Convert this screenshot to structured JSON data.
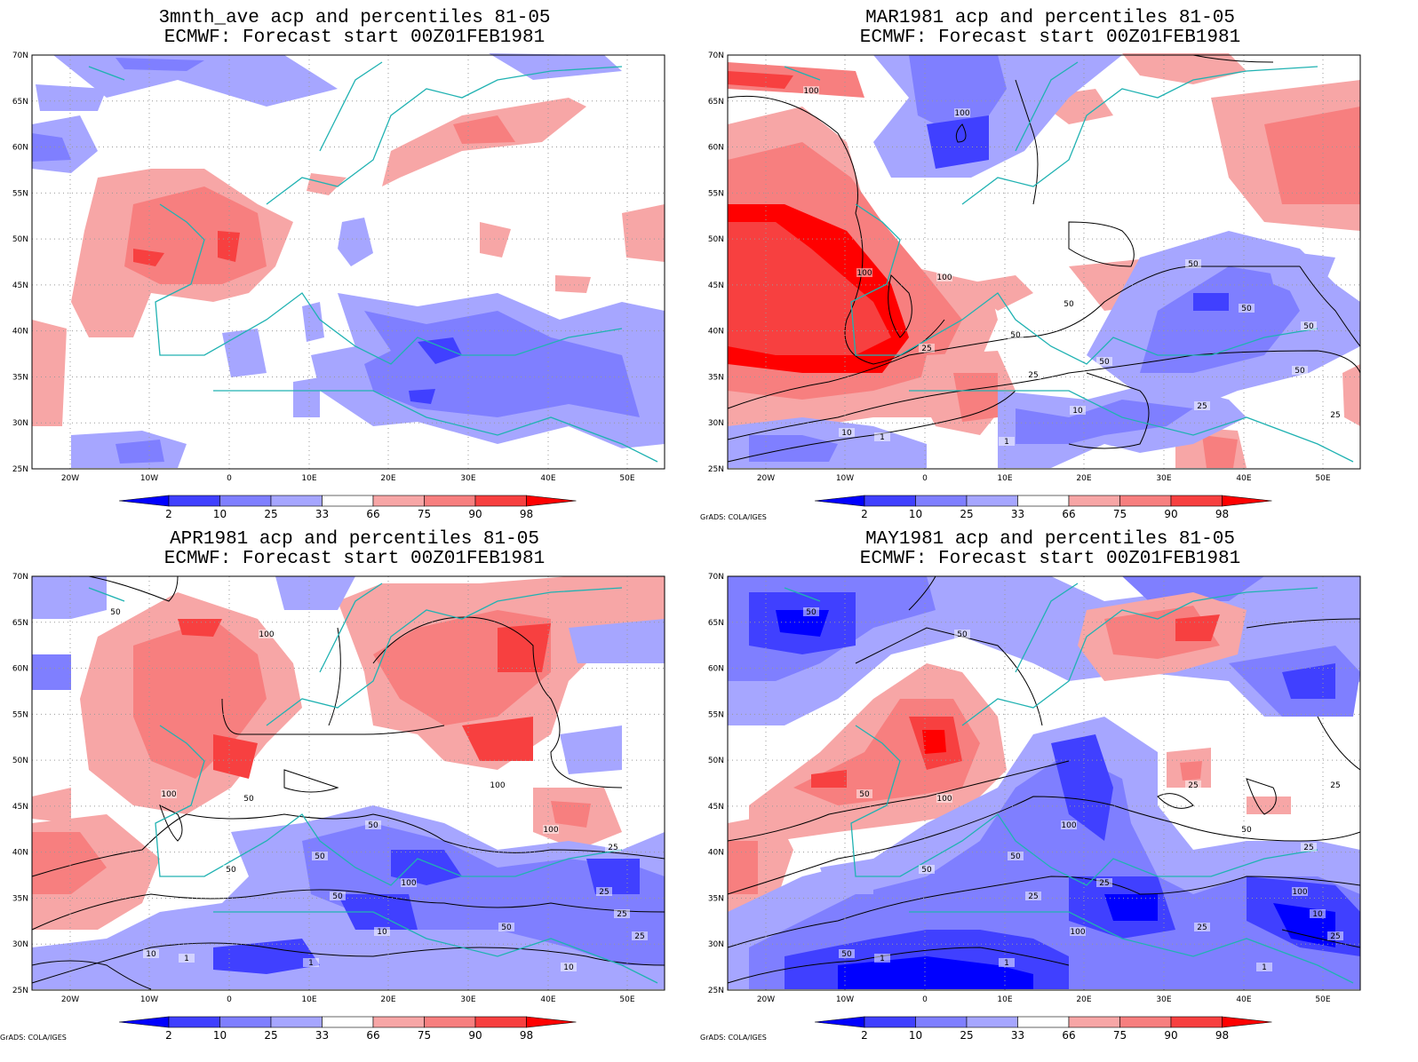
{
  "colors": {
    "b_strong": "#0000ff",
    "b_med": "#4040ff",
    "b_light": "#7f7fff",
    "b_pale": "#a6a6ff",
    "r_pale": "#f7a6a6",
    "r_light": "#f77f7f",
    "r_med": "#f74040",
    "r_strong": "#ff0000",
    "coast": "#20b2b2",
    "contour": "#000000",
    "grid": "#999999"
  },
  "axes": {
    "lat_ticks": [
      "70N",
      "65N",
      "60N",
      "55N",
      "50N",
      "45N",
      "40N",
      "35N",
      "30N",
      "25N"
    ],
    "lon_ticks": [
      "20W",
      "10W",
      "0",
      "10E",
      "20E",
      "30E",
      "40E",
      "50E"
    ]
  },
  "colorbar": {
    "labels": [
      "2",
      "10",
      "25",
      "33",
      "66",
      "75",
      "90",
      "98"
    ]
  },
  "credit": "GrADS: COLA/IGES",
  "panels": [
    {
      "title1": "3mnth_ave acp and percentiles 81-05",
      "title2": "ECMWF: Forecast start 00Z01FEB1981",
      "has_credit": false,
      "contour_labels": []
    },
    {
      "title1": "MAR1981 acp and percentiles 81-05",
      "title2": "ECMWF: Forecast start 00Z01FEB1981",
      "has_credit": true,
      "contour_labels": [
        "100",
        "100",
        "100",
        "100",
        "50",
        "50",
        "50",
        "50",
        "50",
        "50",
        "50",
        "25",
        "25",
        "25",
        "25",
        "10",
        "10",
        "1",
        "1"
      ]
    },
    {
      "title1": "APR1981 acp and percentiles 81-05",
      "title2": "ECMWF: Forecast start 00Z01FEB1981",
      "has_credit": true,
      "contour_labels": [
        "50",
        "100",
        "100",
        "50",
        "50",
        "50",
        "100",
        "100",
        "100",
        "25",
        "25",
        "50",
        "50",
        "50",
        "25",
        "10",
        "10",
        "1",
        "1",
        "10",
        "25"
      ]
    },
    {
      "title1": "MAY1981 acp and percentiles 81-05",
      "title2": "ECMWF: Forecast start 00Z01FEB1981",
      "has_credit": true,
      "contour_labels": [
        "50",
        "50",
        "50",
        "100",
        "100",
        "50",
        "25",
        "25",
        "50",
        "25",
        "100",
        "50",
        "25",
        "25",
        "25",
        "50",
        "100",
        "1",
        "1",
        "1",
        "10",
        "25"
      ]
    }
  ]
}
